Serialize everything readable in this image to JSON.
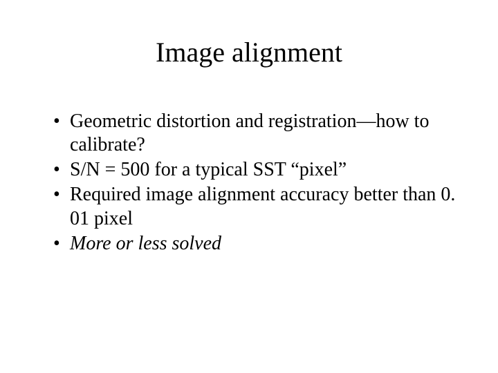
{
  "title": "Image alignment",
  "bullets": [
    {
      "text": "Geometric distortion and registration—how to calibrate?",
      "italic": false
    },
    {
      "text": "S/N = 500 for a typical SST “pixel”",
      "italic": false
    },
    {
      "text": "Required image alignment accuracy better than 0. 01 pixel",
      "italic": false
    },
    {
      "text": "More or less solved",
      "italic": true
    }
  ],
  "colors": {
    "background": "#ffffff",
    "text": "#000000"
  },
  "typography": {
    "title_fontsize": 40,
    "bullet_fontsize": 28,
    "font_family": "Times New Roman"
  }
}
